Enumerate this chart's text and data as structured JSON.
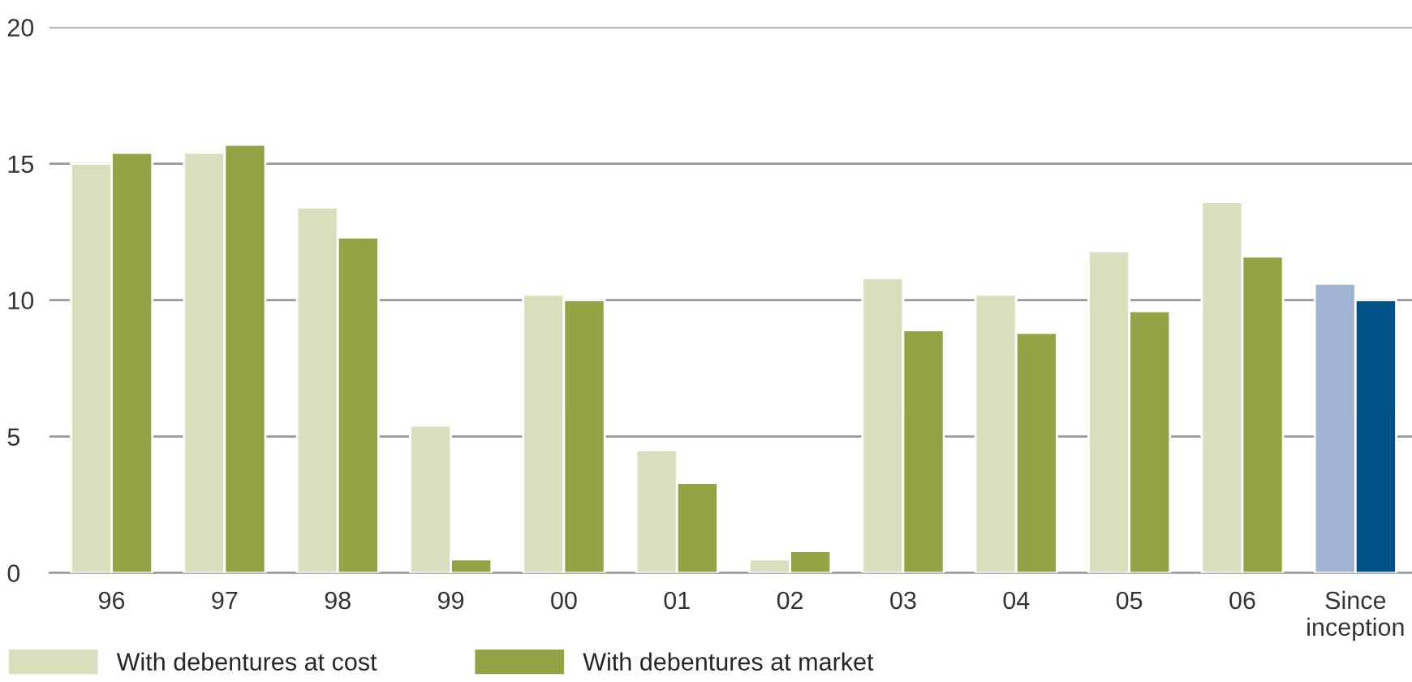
{
  "chart_data": {
    "type": "bar",
    "categories": [
      "96",
      "97",
      "98",
      "99",
      "00",
      "01",
      "02",
      "03",
      "04",
      "05",
      "06",
      "Since\ninception"
    ],
    "series": [
      {
        "name": "With debentures at cost",
        "color": "#d9dfbd",
        "colors": [
          "#d9dfbd",
          "#d9dfbd",
          "#d9dfbd",
          "#d9dfbd",
          "#d9dfbd",
          "#d9dfbd",
          "#d9dfbd",
          "#d9dfbd",
          "#d9dfbd",
          "#d9dfbd",
          "#d9dfbd",
          "#9fb4d3"
        ],
        "values": [
          15.0,
          15.4,
          13.4,
          5.4,
          10.2,
          4.5,
          0.5,
          10.8,
          10.2,
          11.8,
          13.6,
          10.6
        ]
      },
      {
        "name": "With debentures at market",
        "color": "#93a444",
        "colors": [
          "#93a444",
          "#93a444",
          "#93a444",
          "#93a444",
          "#93a444",
          "#93a444",
          "#93a444",
          "#93a444",
          "#93a444",
          "#93a444",
          "#93a444",
          "#005288"
        ],
        "values": [
          15.4,
          15.7,
          12.3,
          0.5,
          10.0,
          3.3,
          0.8,
          8.9,
          8.8,
          9.6,
          11.6,
          10.0
        ]
      }
    ],
    "ylim": [
      0,
      20
    ],
    "yticks": [
      0,
      5,
      10,
      15,
      20
    ],
    "grid": "y",
    "legend": "bottom left"
  }
}
